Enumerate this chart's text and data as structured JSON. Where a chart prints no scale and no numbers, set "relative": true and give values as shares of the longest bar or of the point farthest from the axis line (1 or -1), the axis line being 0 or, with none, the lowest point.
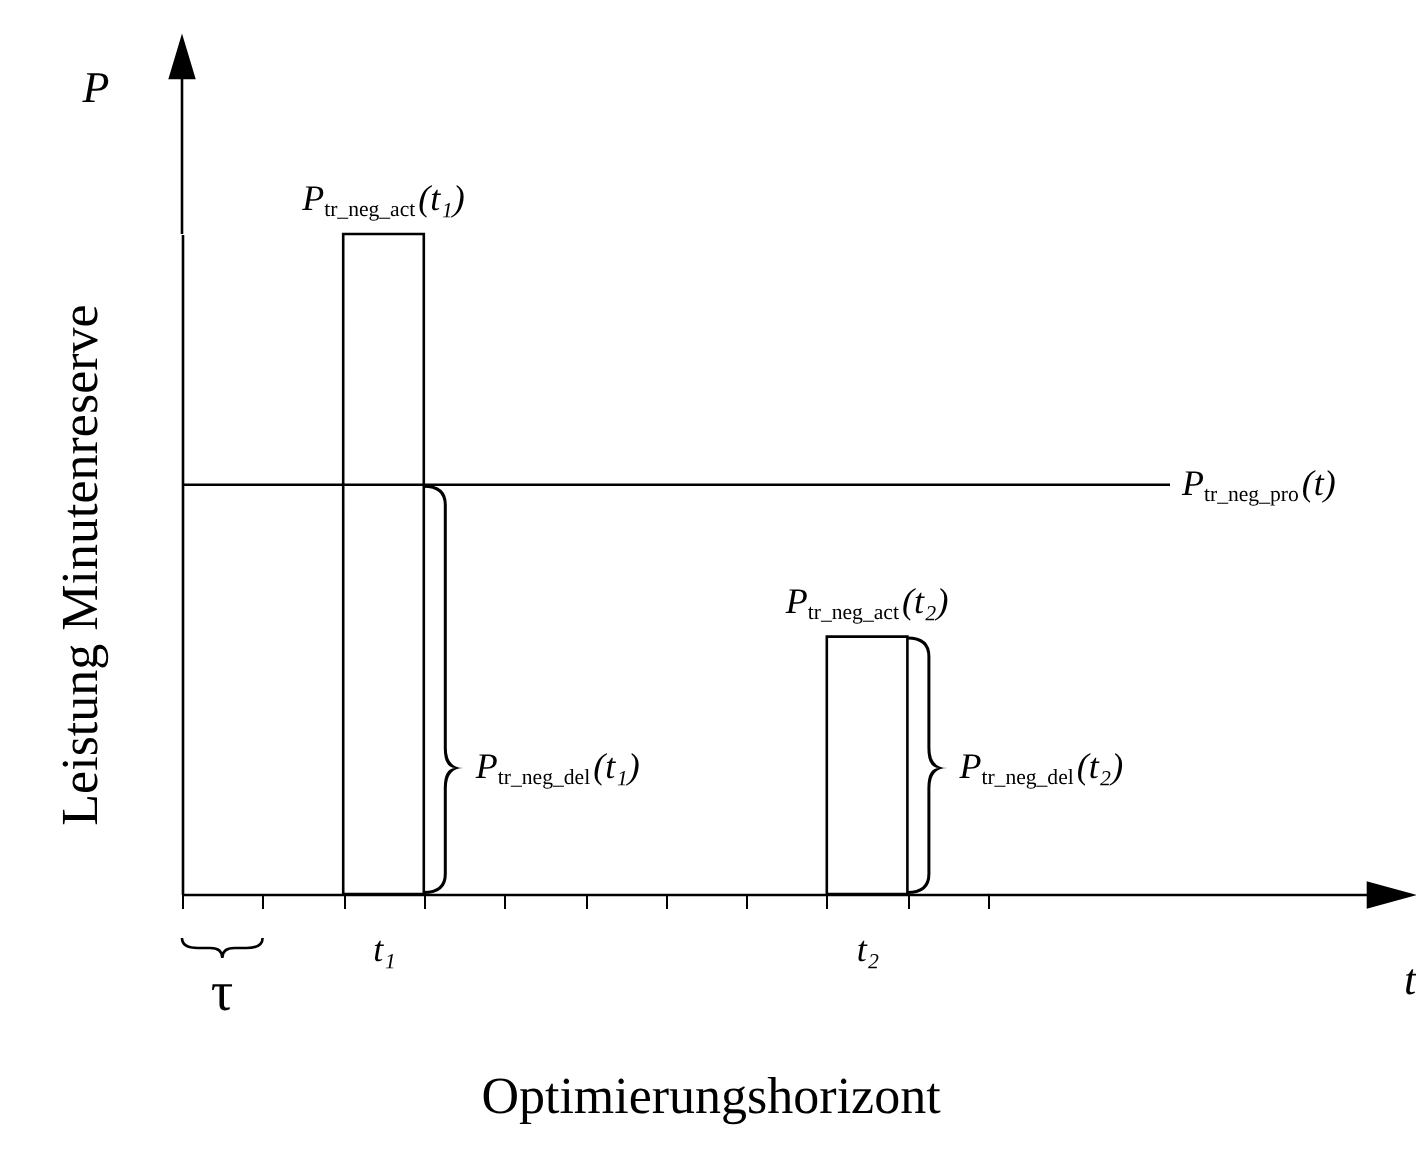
{
  "chart_data": {
    "type": "bar",
    "relative": true,
    "xlabel": "Optimierungshorizont",
    "ylabel": "Leistung Minutenreserve",
    "categories": [
      null,
      null,
      "t₁",
      null,
      null,
      null,
      null,
      null,
      "t₂",
      null
    ],
    "values": [
      null,
      null,
      1,
      null,
      null,
      null,
      null,
      null,
      0.39,
      null
    ],
    "color": "#ffffff",
    "tick_labels": "x",
    "grid": false,
    "ref_lines": [
      {
        "axis": "y",
        "value": 0.62,
        "label": "P$_{tr_neg_pro}$(t)",
        "color": "#000000"
      }
    ],
    "annotations": [
      "P",
      "t",
      "τ",
      "P$_{tr_neg_del}$(t₁)",
      "P$_{tr_neg_del}$(t₂)",
      {
        "text": "P$_{tr_neg_act}$(t₁)",
        "x": "t₁",
        "y": 1
      },
      {
        "text": "P$_{tr_neg_act}$(t₂)",
        "x": "t₂",
        "y": 0.39
      }
    ]
  }
}
